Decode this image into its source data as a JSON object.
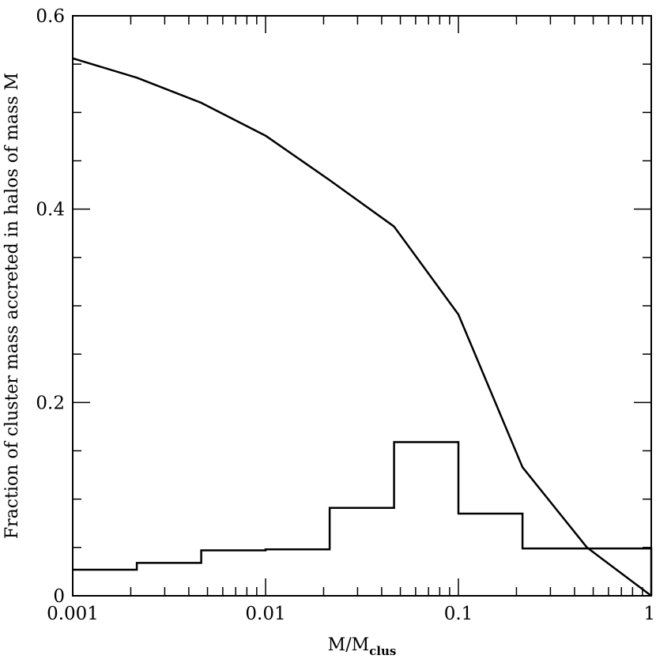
{
  "chart_data": {
    "type": "line",
    "xlabel": "M/M",
    "xlabel_sub": "clus",
    "ylabel": "Fraction of cluster mass accreted in halos of mass M",
    "xscale": "log",
    "xlim": [
      0.001,
      1
    ],
    "ylim": [
      0,
      0.6
    ],
    "x_ticks": [
      {
        "value": 0.001,
        "label": "0.001"
      },
      {
        "value": 0.01,
        "label": "0.01"
      },
      {
        "value": 0.1,
        "label": "0.1"
      },
      {
        "value": 1,
        "label": "1"
      }
    ],
    "y_ticks": [
      {
        "value": 0,
        "label": "0"
      },
      {
        "value": 0.2,
        "label": "0.2"
      },
      {
        "value": 0.4,
        "label": "0.4"
      },
      {
        "value": 0.6,
        "label": "0.6"
      }
    ],
    "y_minor_step": 0.05,
    "grid": false,
    "series": [
      {
        "kind": "line",
        "x": [
          0.001,
          0.00215,
          0.00464,
          0.01,
          0.0215,
          0.0464,
          0.1,
          0.215,
          0.464,
          1
        ],
        "y": [
          0.556,
          0.536,
          0.51,
          0.476,
          0.43,
          0.382,
          0.291,
          0.133,
          0.05,
          0
        ]
      },
      {
        "kind": "step",
        "edges": [
          0.001,
          0.00215,
          0.00464,
          0.01,
          0.0215,
          0.0464,
          0.1,
          0.215,
          0.464,
          1
        ],
        "values": [
          0.027,
          0.034,
          0.047,
          0.048,
          0.091,
          0.159,
          0.085,
          0.049,
          0.049
        ]
      }
    ]
  }
}
